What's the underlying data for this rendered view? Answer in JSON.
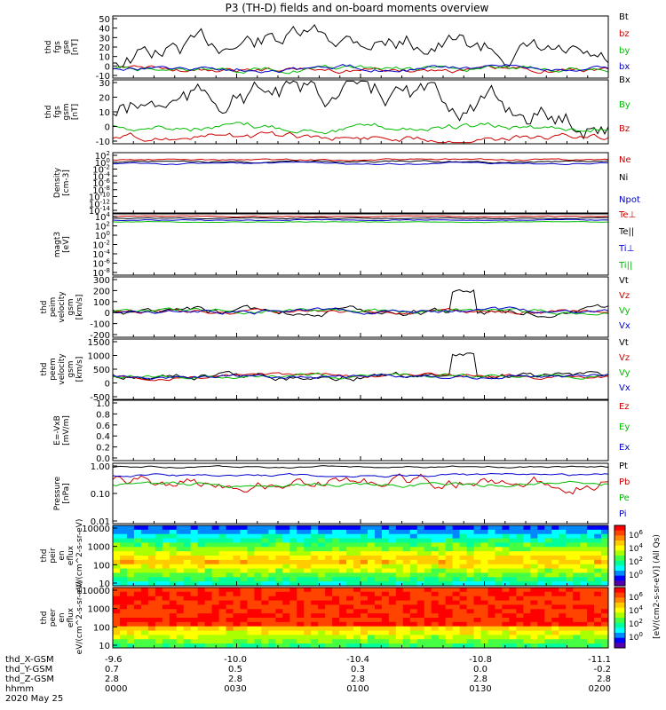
{
  "title": "P3 (TH-D) fields and on-board moments overview",
  "footer": {
    "rows": [
      {
        "label": "thd_X-GSM",
        "values": [
          "-9.6",
          "-10.0",
          "-10.4",
          "-10.8",
          "-11.1"
        ]
      },
      {
        "label": "thd_Y-GSM",
        "values": [
          "0.7",
          "0.5",
          "0.3",
          "0.0",
          "-0.2"
        ]
      },
      {
        "label": "thd_Z-GSM",
        "values": [
          "2.8",
          "2.8",
          "2.8",
          "2.8",
          "2.8"
        ]
      },
      {
        "label": "hhmm",
        "values": [
          "0000",
          "0030",
          "0100",
          "0130",
          "0200"
        ]
      }
    ],
    "date": "2020 May 25"
  },
  "colorbar": {
    "label": "[eV/(cm2-s-sr-eV)] (All Qs)",
    "ticks": [
      "10^6",
      "10^4",
      "10^2",
      "10^0"
    ],
    "colors": [
      "#ff0000",
      "#ff4400",
      "#ff8800",
      "#ffcc00",
      "#ffff00",
      "#aaff00",
      "#44ff44",
      "#00ff99",
      "#00ffff",
      "#0088ff",
      "#0000ff",
      "#5500aa"
    ]
  },
  "chart_data": [
    {
      "type": "line",
      "ylabel": "thd fgs gse [nT]",
      "yticks": [
        "50",
        "40",
        "30",
        "20",
        "10",
        "0",
        "-10"
      ],
      "ylim": [
        -10,
        50
      ],
      "series": [
        {
          "name": "Bt",
          "color": "#000000"
        },
        {
          "name": "bz",
          "color": "#cc0000"
        },
        {
          "name": "by",
          "color": "#00bb00"
        },
        {
          "name": "bx",
          "color": "#0000cc"
        }
      ]
    },
    {
      "type": "line",
      "ylabel": "thd fgs gsm [nT]",
      "yticks": [
        "30",
        "20",
        "10",
        "0",
        "-10"
      ],
      "ylim": [
        -15,
        30
      ],
      "series": [
        {
          "name": "Bx",
          "color": "#000000"
        },
        {
          "name": "By",
          "color": "#00bb00"
        },
        {
          "name": "Bz",
          "color": "#cc0000"
        }
      ]
    },
    {
      "type": "line",
      "ylabel": "Density [cm-3]",
      "yticks": [
        "10^2",
        "10^0",
        "10^-2",
        "10^-4",
        "10^-6",
        "10^-8",
        "10^-10",
        "10^-12",
        "10^-14"
      ],
      "log": true,
      "series": [
        {
          "name": "Ne",
          "color": "#cc0000"
        },
        {
          "name": "Ni",
          "color": "#000000"
        },
        {
          "name": "Npot",
          "color": "#0000cc"
        }
      ]
    },
    {
      "type": "line",
      "ylabel": "magt3 [eV]",
      "yticks": [
        "10^4",
        "10^2",
        "10^0",
        "10^-2",
        "10^-4",
        "10^-6",
        "10^-8"
      ],
      "log": true,
      "series": [
        {
          "name": "Te⊥",
          "color": "#cc0000"
        },
        {
          "name": "Te||",
          "color": "#000000"
        },
        {
          "name": "Ti⊥",
          "color": "#0000cc"
        },
        {
          "name": "Ti||",
          "color": "#00bb00"
        }
      ]
    },
    {
      "type": "line",
      "ylabel": "thd peim velocity gsm [km/s]",
      "yticks": [
        "300",
        "200",
        "100",
        "0",
        "-100",
        "-200"
      ],
      "ylim": [
        -200,
        300
      ],
      "series": [
        {
          "name": "Vt",
          "color": "#000000"
        },
        {
          "name": "Vz",
          "color": "#cc0000"
        },
        {
          "name": "Vy",
          "color": "#00bb00"
        },
        {
          "name": "Vx",
          "color": "#0000cc"
        }
      ]
    },
    {
      "type": "line",
      "ylabel": "thd peem velocity gsm [km/s]",
      "yticks": [
        "1500",
        "1000",
        "500",
        "0",
        "-500"
      ],
      "ylim": [
        -1000,
        1500
      ],
      "series": [
        {
          "name": "Vt",
          "color": "#000000"
        },
        {
          "name": "Vz",
          "color": "#cc0000"
        },
        {
          "name": "Vy",
          "color": "#00bb00"
        },
        {
          "name": "Vx",
          "color": "#0000cc"
        }
      ]
    },
    {
      "type": "line",
      "ylabel": "E=-VxB [mV/m]",
      "yticks": [
        "1.0",
        "0.8",
        "0.6",
        "0.4",
        "0.2",
        "0.0"
      ],
      "ylim": [
        0,
        1
      ],
      "series": [
        {
          "name": "Ez",
          "color": "#cc0000"
        },
        {
          "name": "Ey",
          "color": "#00bb00"
        },
        {
          "name": "Ex",
          "color": "#0000cc"
        }
      ]
    },
    {
      "type": "line",
      "ylabel": "Pressure [nPa]",
      "yticks": [
        "1.00",
        "0.10",
        "0.01"
      ],
      "log": true,
      "series": [
        {
          "name": "Pt",
          "color": "#000000"
        },
        {
          "name": "Pb",
          "color": "#cc0000"
        },
        {
          "name": "Pe",
          "color": "#00bb00"
        },
        {
          "name": "Pi",
          "color": "#0000cc"
        }
      ]
    },
    {
      "type": "heatmap",
      "ylabel": "thd peir en eflux eV/(cm^2-s-sr-eV)",
      "yticks": [
        "10000",
        "1000",
        "100",
        "10"
      ]
    },
    {
      "type": "heatmap",
      "ylabel": "thd peer en eflux eV/(cm^2-s-sr-eV)",
      "yticks": [
        "10000",
        "1000",
        "100",
        "10"
      ]
    }
  ]
}
